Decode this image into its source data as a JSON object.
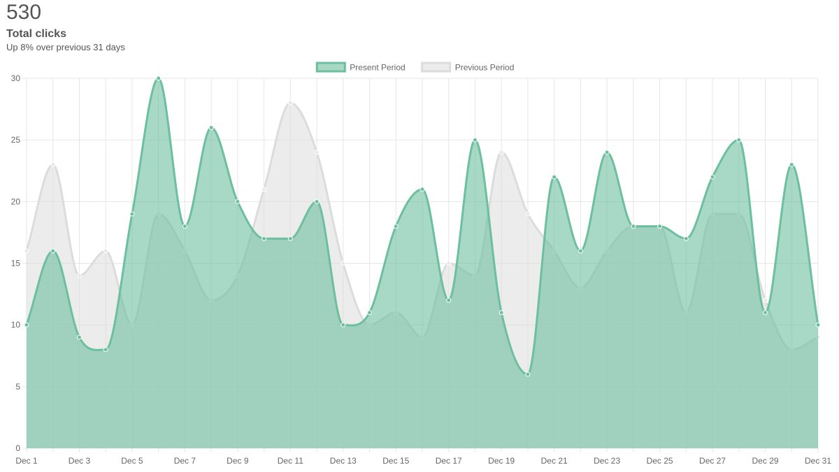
{
  "summary": {
    "total": "530",
    "title": "Total clicks",
    "subtitle": "Up 8% over previous 31 days"
  },
  "chart_data": {
    "type": "area",
    "x": [
      "Dec 1",
      "Dec 2",
      "Dec 3",
      "Dec 4",
      "Dec 5",
      "Dec 6",
      "Dec 7",
      "Dec 8",
      "Dec 9",
      "Dec 10",
      "Dec 11",
      "Dec 12",
      "Dec 13",
      "Dec 14",
      "Dec 15",
      "Dec 16",
      "Dec 17",
      "Dec 18",
      "Dec 19",
      "Dec 20",
      "Dec 21",
      "Dec 22",
      "Dec 23",
      "Dec 24",
      "Dec 25",
      "Dec 26",
      "Dec 27",
      "Dec 28",
      "Dec 29",
      "Dec 30",
      "Dec 31"
    ],
    "xtick_labels": [
      "Dec 1",
      "Dec 3",
      "Dec 5",
      "Dec 7",
      "Dec 9",
      "Dec 11",
      "Dec 13",
      "Dec 15",
      "Dec 17",
      "Dec 19",
      "Dec 21",
      "Dec 23",
      "Dec 25",
      "Dec 27",
      "Dec 29",
      "Dec 31"
    ],
    "ylim": [
      0,
      30
    ],
    "yticks": [
      0,
      5,
      10,
      15,
      20,
      25,
      30
    ],
    "grid": true,
    "legend_position": "top-center",
    "series": [
      {
        "name": "Present Period",
        "values": [
          10,
          16,
          9,
          8,
          19,
          30,
          18,
          26,
          20,
          17,
          17,
          20,
          10,
          11,
          18,
          21,
          12,
          25,
          11,
          6,
          22,
          16,
          24,
          18,
          18,
          17,
          22,
          25,
          11,
          23,
          10
        ],
        "stroke": "#6cbf9f",
        "fill": "rgba(110,190,160,0.6)"
      },
      {
        "name": "Previous Period",
        "values": [
          16,
          23,
          14,
          16,
          10,
          19,
          16,
          12,
          14,
          21,
          28,
          24,
          15,
          10,
          11,
          9,
          15,
          14,
          24,
          19,
          16,
          13,
          16,
          18,
          18,
          11,
          19,
          19,
          12,
          8,
          9
        ],
        "stroke": "#dcdcdc",
        "fill": "rgba(220,220,220,0.55)"
      }
    ]
  }
}
